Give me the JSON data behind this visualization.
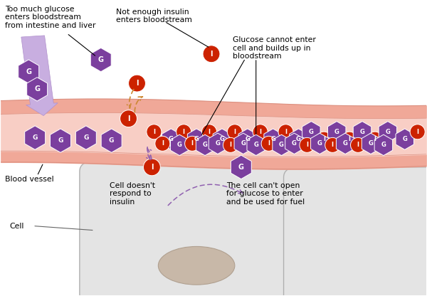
{
  "fig_width": 6.0,
  "fig_height": 4.16,
  "dpi": 100,
  "background_color": "#ffffff",
  "glucose_color": "#7b3f9e",
  "insulin_color": "#cc2200",
  "arrow_lavender": "#b090d0",
  "arrow_orange": "#cc8833",
  "labels": {
    "too_much_glucose": "Too much glucose\nenters bloodstream\nfrom intestine and liver",
    "not_enough_insulin": "Not enough insulin\nenters bloodstream",
    "glucose_cannot": "Glucose cannot enter\ncell and builds up in\nbloodstream",
    "blood_vessel": "Blood vessel",
    "cell_label": "Cell",
    "cell_no_respond": "Cell doesn't\nrespond to\ninsulin",
    "cell_cant_open": "The cell can't open\nfor glucose to enter\nand be used for fuel"
  }
}
